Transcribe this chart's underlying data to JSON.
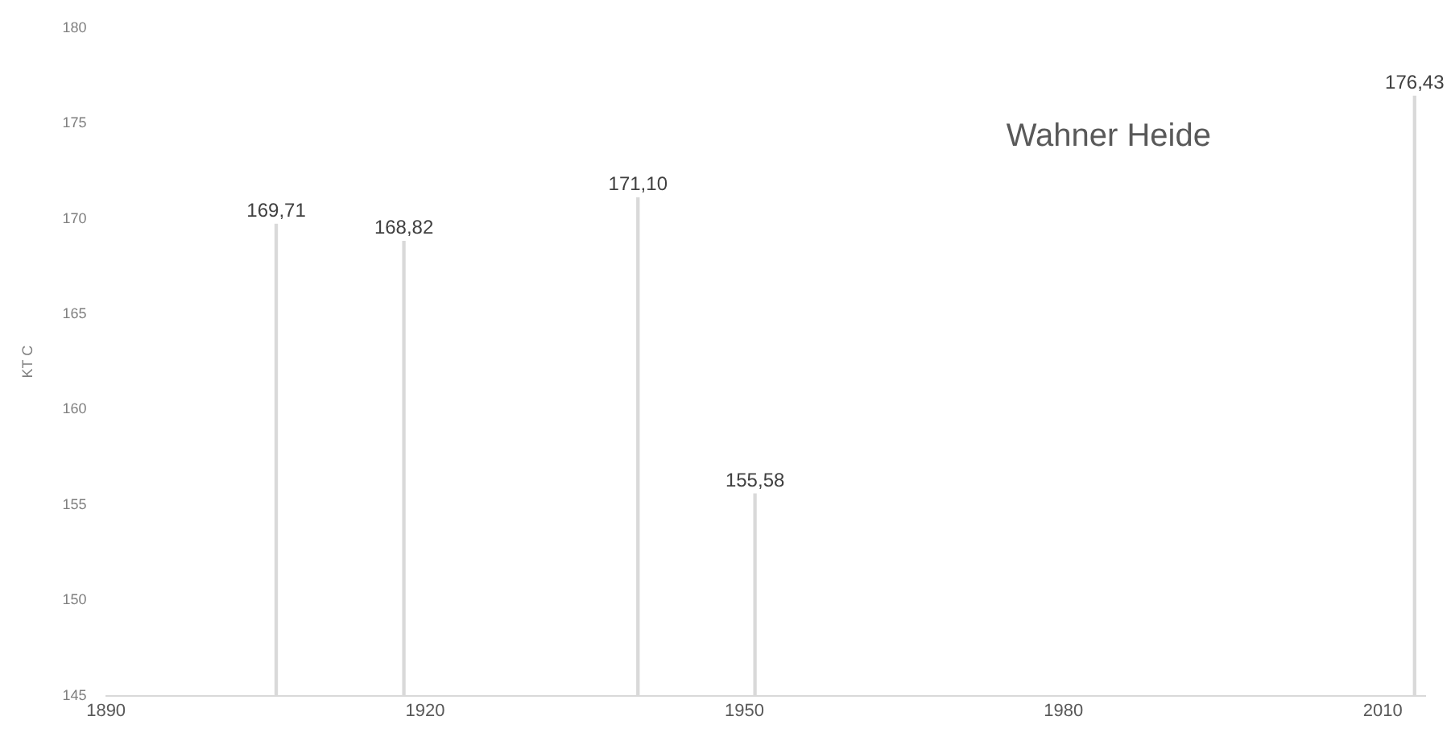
{
  "chart_data": {
    "type": "bar",
    "title": "Wahner Heide",
    "ylabel": "KT C",
    "x": [
      1906,
      1918,
      1940,
      1951,
      2013
    ],
    "values": [
      169.71,
      168.82,
      171.1,
      155.58,
      176.43
    ],
    "value_labels": [
      "169,71",
      "168,82",
      "171,10",
      "155,58",
      "176,43"
    ],
    "color": "#d9d9d9",
    "xlim": [
      1890,
      2014
    ],
    "xticks": [
      1890,
      1920,
      1950,
      1980,
      2010
    ],
    "ylim": [
      145,
      180
    ],
    "yticks": [
      145,
      150,
      155,
      160,
      165,
      170,
      175,
      180
    ],
    "grid": false,
    "legend": false
  }
}
